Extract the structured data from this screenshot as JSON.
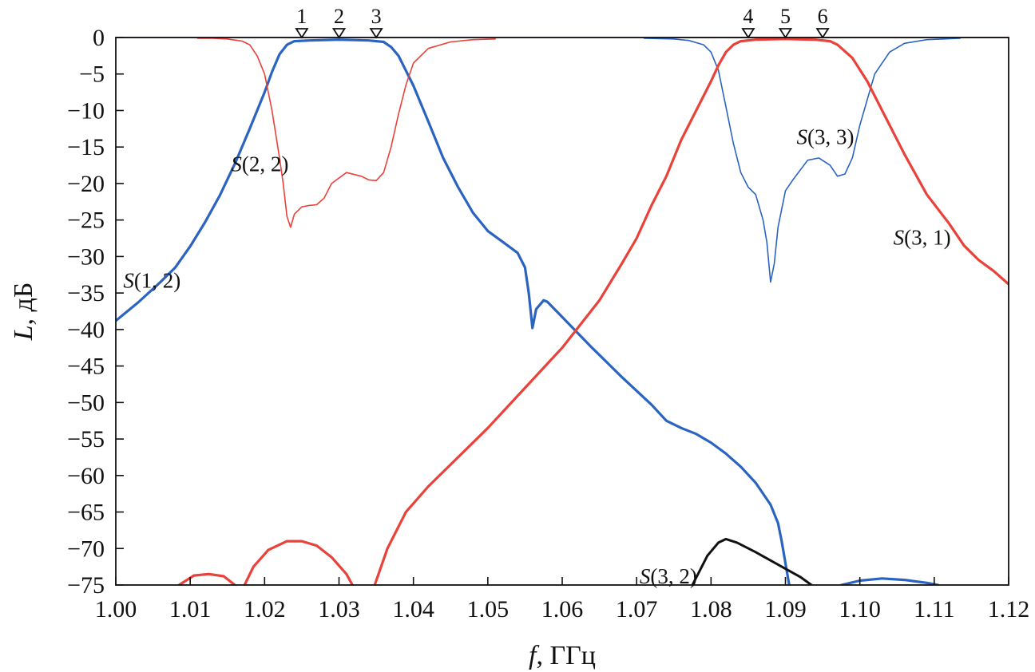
{
  "chart_data": {
    "type": "line",
    "title": "",
    "xlabel_var": "f",
    "xlabel_unit": ", ГГц",
    "ylabel_var": "L",
    "ylabel_unit": ", дБ",
    "xlim": [
      1.0,
      1.12
    ],
    "ylim": [
      -75,
      0
    ],
    "grid": false,
    "x_ticks": [
      1.0,
      1.01,
      1.02,
      1.03,
      1.04,
      1.05,
      1.06,
      1.07,
      1.08,
      1.09,
      1.1,
      1.11,
      1.12
    ],
    "x_tick_labels": [
      "1.00",
      "1.01",
      "1.02",
      "1.03",
      "1.04",
      "1.05",
      "1.06",
      "1.07",
      "1.08",
      "1.09",
      "1.10",
      "1.11",
      "1.12"
    ],
    "y_ticks": [
      0,
      -5,
      -10,
      -15,
      -20,
      -25,
      -30,
      -35,
      -40,
      -45,
      -50,
      -55,
      -60,
      -65,
      -70,
      -75
    ],
    "y_tick_labels": [
      "0",
      "−5",
      "−10",
      "−15",
      "−20",
      "−25",
      "−30",
      "−35",
      "−40",
      "−45",
      "−50",
      "−55",
      "−60",
      "−65",
      "−70",
      "−75"
    ],
    "markers": [
      {
        "label": "1",
        "x": 1.025
      },
      {
        "label": "2",
        "x": 1.03
      },
      {
        "label": "3",
        "x": 1.035
      },
      {
        "label": "4",
        "x": 1.085
      },
      {
        "label": "5",
        "x": 1.09
      },
      {
        "label": "6",
        "x": 1.095
      }
    ],
    "series": [
      {
        "label_var": "S",
        "label_args": "(1, 2)",
        "color": "#2b63c0",
        "width": 3.2,
        "label_at": [
          1.001,
          -33.2
        ],
        "points": [
          [
            1.0,
            -38.8
          ],
          [
            1.003,
            -36.3
          ],
          [
            1.006,
            -33.5
          ],
          [
            1.008,
            -31.5
          ],
          [
            1.01,
            -28.6
          ],
          [
            1.012,
            -25.3
          ],
          [
            1.014,
            -21.6
          ],
          [
            1.016,
            -17.3
          ],
          [
            1.018,
            -12.5
          ],
          [
            1.02,
            -7.5
          ],
          [
            1.021,
            -4.7
          ],
          [
            1.022,
            -2.3
          ],
          [
            1.023,
            -1.0
          ],
          [
            1.024,
            -0.5
          ],
          [
            1.026,
            -0.4
          ],
          [
            1.03,
            -0.3
          ],
          [
            1.034,
            -0.4
          ],
          [
            1.036,
            -0.6
          ],
          [
            1.037,
            -1.3
          ],
          [
            1.038,
            -2.5
          ],
          [
            1.04,
            -6.6
          ],
          [
            1.042,
            -11.5
          ],
          [
            1.044,
            -16.5
          ],
          [
            1.046,
            -20.5
          ],
          [
            1.048,
            -24.0
          ],
          [
            1.05,
            -26.5
          ],
          [
            1.052,
            -28.0
          ],
          [
            1.054,
            -29.5
          ],
          [
            1.055,
            -31.5
          ],
          [
            1.0555,
            -35.0
          ],
          [
            1.056,
            -39.8
          ],
          [
            1.0565,
            -37.2
          ],
          [
            1.0575,
            -36.0
          ],
          [
            1.058,
            -36.2
          ],
          [
            1.06,
            -38.3
          ],
          [
            1.064,
            -42.5
          ],
          [
            1.068,
            -46.5
          ],
          [
            1.072,
            -50.3
          ],
          [
            1.074,
            -52.5
          ],
          [
            1.076,
            -53.5
          ],
          [
            1.078,
            -54.3
          ],
          [
            1.08,
            -55.5
          ],
          [
            1.082,
            -57.0
          ],
          [
            1.084,
            -58.8
          ],
          [
            1.086,
            -61.0
          ],
          [
            1.088,
            -64.0
          ],
          [
            1.089,
            -66.5
          ],
          [
            1.0895,
            -69.0
          ],
          [
            1.0905,
            -75
          ]
        ]
      },
      {
        "label_var": "",
        "label_args": "",
        "color": "#2b63c0",
        "width": 3.2,
        "label_at": null,
        "points": [
          [
            1.0975,
            -75
          ],
          [
            1.1,
            -74.4
          ],
          [
            1.103,
            -74.1
          ],
          [
            1.106,
            -74.3
          ],
          [
            1.109,
            -74.7
          ],
          [
            1.1105,
            -75
          ]
        ]
      },
      {
        "label_var": "S",
        "label_args": "(2, 2)",
        "color": "#e8423a",
        "width": 1.6,
        "label_at": [
          1.0155,
          -17.2
        ],
        "points": [
          [
            1.011,
            -0.1
          ],
          [
            1.013,
            -0.1
          ],
          [
            1.015,
            -0.2
          ],
          [
            1.017,
            -0.5
          ],
          [
            1.018,
            -1.0
          ],
          [
            1.019,
            -2.5
          ],
          [
            1.02,
            -5.0
          ],
          [
            1.021,
            -10.0
          ],
          [
            1.022,
            -16.5
          ],
          [
            1.0225,
            -20.0
          ],
          [
            1.023,
            -24.5
          ],
          [
            1.0235,
            -26.0
          ],
          [
            1.024,
            -24.2
          ],
          [
            1.025,
            -23.2
          ],
          [
            1.026,
            -23.0
          ],
          [
            1.027,
            -22.9
          ],
          [
            1.028,
            -22.0
          ],
          [
            1.029,
            -20.0
          ],
          [
            1.031,
            -18.5
          ],
          [
            1.033,
            -19.0
          ],
          [
            1.034,
            -19.5
          ],
          [
            1.035,
            -19.6
          ],
          [
            1.036,
            -18.5
          ],
          [
            1.037,
            -15.0
          ],
          [
            1.038,
            -10.5
          ],
          [
            1.039,
            -6.5
          ],
          [
            1.04,
            -3.5
          ],
          [
            1.042,
            -1.5
          ],
          [
            1.045,
            -0.6
          ],
          [
            1.048,
            -0.3
          ],
          [
            1.051,
            -0.2
          ]
        ]
      },
      {
        "label_var": "S",
        "label_args": "(3, 3)",
        "color": "#2b63c0",
        "width": 1.6,
        "label_at": [
          1.0915,
          -13.5
        ],
        "points": [
          [
            1.071,
            -0.1
          ],
          [
            1.075,
            -0.2
          ],
          [
            1.077,
            -0.4
          ],
          [
            1.079,
            -1.0
          ],
          [
            1.08,
            -2.0
          ],
          [
            1.081,
            -4.5
          ],
          [
            1.082,
            -9.5
          ],
          [
            1.083,
            -14.5
          ],
          [
            1.084,
            -18.5
          ],
          [
            1.085,
            -20.5
          ],
          [
            1.086,
            -21.5
          ],
          [
            1.087,
            -25.0
          ],
          [
            1.0875,
            -28.0
          ],
          [
            1.088,
            -33.5
          ],
          [
            1.0885,
            -31.0
          ],
          [
            1.089,
            -26.0
          ],
          [
            1.09,
            -21.0
          ],
          [
            1.091,
            -19.5
          ],
          [
            1.093,
            -16.8
          ],
          [
            1.0945,
            -16.5
          ],
          [
            1.096,
            -17.5
          ],
          [
            1.097,
            -19.0
          ],
          [
            1.098,
            -18.7
          ],
          [
            1.099,
            -16.5
          ],
          [
            1.1,
            -12.0
          ],
          [
            1.101,
            -8.5
          ],
          [
            1.102,
            -5.0
          ],
          [
            1.104,
            -2.0
          ],
          [
            1.106,
            -0.8
          ],
          [
            1.109,
            -0.3
          ],
          [
            1.1135,
            -0.1
          ]
        ]
      },
      {
        "label_var": "S",
        "label_args": "(3, 1)",
        "color": "#e8423a",
        "width": 3.2,
        "label_at": [
          1.1045,
          -27.3
        ],
        "points": [
          [
            1.0085,
            -75
          ],
          [
            1.0105,
            -73.7
          ],
          [
            1.0125,
            -73.5
          ],
          [
            1.0145,
            -73.8
          ],
          [
            1.016,
            -75
          ]
        ],
        "points2": [
          [
            1.0173,
            -75
          ],
          [
            1.0185,
            -72.5
          ],
          [
            1.0205,
            -70.2
          ],
          [
            1.023,
            -69.0
          ],
          [
            1.025,
            -69.0
          ],
          [
            1.027,
            -69.6
          ],
          [
            1.029,
            -71.2
          ],
          [
            1.031,
            -73.5
          ],
          [
            1.0318,
            -75
          ]
        ],
        "points3": [
          [
            1.0348,
            -75
          ],
          [
            1.0365,
            -70.0
          ],
          [
            1.039,
            -65.0
          ],
          [
            1.042,
            -61.5
          ],
          [
            1.045,
            -58.5
          ],
          [
            1.05,
            -53.5
          ],
          [
            1.055,
            -48.0
          ],
          [
            1.06,
            -42.5
          ],
          [
            1.065,
            -36.0
          ],
          [
            1.068,
            -31.0
          ],
          [
            1.07,
            -27.5
          ],
          [
            1.072,
            -23.0
          ],
          [
            1.074,
            -19.0
          ],
          [
            1.076,
            -14.0
          ],
          [
            1.078,
            -10.0
          ],
          [
            1.08,
            -6.0
          ],
          [
            1.081,
            -3.8
          ],
          [
            1.082,
            -2.0
          ],
          [
            1.083,
            -1.0
          ],
          [
            1.084,
            -0.5
          ],
          [
            1.086,
            -0.3
          ],
          [
            1.09,
            -0.2
          ],
          [
            1.094,
            -0.3
          ],
          [
            1.096,
            -0.5
          ],
          [
            1.097,
            -1.0
          ],
          [
            1.099,
            -2.8
          ],
          [
            1.101,
            -6.0
          ],
          [
            1.103,
            -10.0
          ],
          [
            1.106,
            -16.0
          ],
          [
            1.109,
            -21.5
          ],
          [
            1.112,
            -25.5
          ],
          [
            1.114,
            -28.5
          ],
          [
            1.116,
            -30.5
          ],
          [
            1.118,
            -32.0
          ],
          [
            1.12,
            -33.8
          ]
        ]
      },
      {
        "label_var": "S",
        "label_args": "(3, 2)",
        "color": "#111111",
        "width": 3.0,
        "label_at": [
          1.0704,
          -73.7
        ],
        "points": [
          [
            1.0775,
            -75
          ],
          [
            1.0785,
            -73.0
          ],
          [
            1.0795,
            -71.0
          ],
          [
            1.081,
            -69.2
          ],
          [
            1.082,
            -68.7
          ],
          [
            1.0835,
            -69.2
          ],
          [
            1.086,
            -70.5
          ],
          [
            1.089,
            -72.2
          ],
          [
            1.092,
            -73.9
          ],
          [
            1.0935,
            -75
          ]
        ]
      },
      {
        "label_var": "",
        "label_args": "",
        "color": "#2b63c0",
        "width": 1.6,
        "label_at": null,
        "points": [
          [
            1.0,
            0.0
          ],
          [
            1.12,
            0.0
          ]
        ]
      },
      {
        "label_var": "",
        "label_args": "",
        "color": "#e8423a",
        "width": 1.6,
        "label_at": null,
        "points": [
          [
            1.0715,
            0.0
          ],
          [
            1.12,
            0.0
          ]
        ]
      }
    ]
  }
}
